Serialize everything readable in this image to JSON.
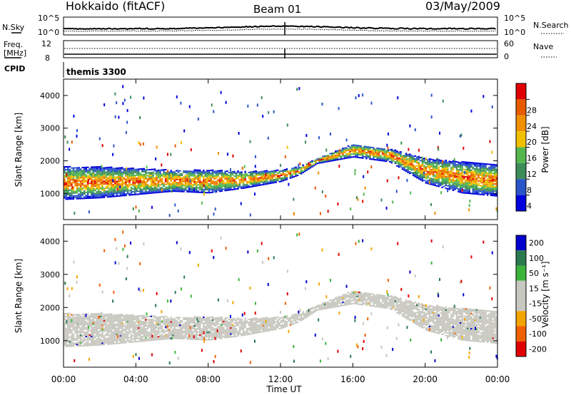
{
  "header": {
    "station": "Hokkaido (fitACF)",
    "beam": "Beam 01",
    "date": "03/May/2009",
    "cpid_label": "CPID",
    "cpid_value": "themis 3300"
  },
  "top_panels": {
    "nsky_label": "N.Sky",
    "nsearch_label": "N.Search",
    "nsky_ticks": [
      "10^5",
      "10^0"
    ],
    "freq_label_1": "Freq.",
    "freq_label_2": "[MHz]",
    "freq_ticks": [
      "12",
      "8"
    ],
    "nave_label": "Nave",
    "nave_ticks": [
      "60",
      "0"
    ]
  },
  "colors": {
    "power": [
      "#0000dd",
      "#2a55c8",
      "#3d8c5a",
      "#55b84f",
      "#f2c000",
      "#f09000",
      "#e85a00",
      "#e00000"
    ],
    "velocity": [
      "#e00000",
      "#f06000",
      "#f2a500",
      "#c8c8c0",
      "#c8c8c0",
      "#3cb43c",
      "#2a7a50",
      "#0000cc"
    ],
    "ground_scatter": "#c8c8c0"
  },
  "chart_data": [
    {
      "type": "heatmap",
      "ylabel": "Slant Range [km]",
      "xlabel": "Time UT",
      "ylim": [
        200,
        4500
      ],
      "xlim": [
        0,
        24
      ],
      "x_ticks": [
        "00:00",
        "04:00",
        "08:00",
        "12:00",
        "16:00",
        "20:00",
        "00:00"
      ],
      "y_ticks": [
        1000,
        2000,
        3000,
        4000
      ],
      "colorbar": {
        "label": "Power [dB]",
        "ticks": [
          "4",
          "8",
          "12",
          "16",
          "20",
          "24",
          "28"
        ],
        "range": [
          0,
          30
        ]
      },
      "scatter_band": {
        "time_h": [
          0,
          2,
          4,
          6,
          8,
          10,
          12,
          13,
          14,
          16,
          18,
          20,
          22,
          24
        ],
        "lower_km": [
          800,
          850,
          950,
          1050,
          1000,
          1150,
          1350,
          1550,
          1900,
          2100,
          1950,
          1300,
          1000,
          900
        ],
        "upper_km": [
          1800,
          1800,
          1750,
          1700,
          1700,
          1650,
          1700,
          1800,
          2050,
          2500,
          2350,
          2050,
          1950,
          1850
        ]
      }
    },
    {
      "type": "heatmap",
      "ylabel": "Slant Range [km]",
      "xlabel": "Time UT",
      "ylim": [
        200,
        4500
      ],
      "xlim": [
        0,
        24
      ],
      "x_ticks": [
        "00:00",
        "04:00",
        "08:00",
        "12:00",
        "16:00",
        "20:00",
        "00:00"
      ],
      "y_ticks": [
        1000,
        2000,
        3000,
        4000
      ],
      "colorbar": {
        "label": "Velocity [m s⁻¹]",
        "ticks": [
          "200",
          "100",
          "50",
          "15",
          "-15",
          "-50",
          "-100",
          "-200"
        ],
        "range": [
          -250,
          250
        ]
      }
    }
  ]
}
